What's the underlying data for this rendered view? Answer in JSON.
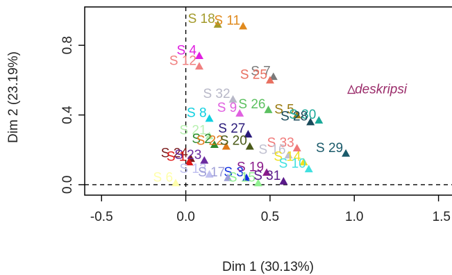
{
  "chart_data": {
    "type": "scatter",
    "title": "",
    "xlabel": "Dim 1 (30.13%)",
    "ylabel": "Dim 2 (23.19%)",
    "xlim": [
      -0.6,
      1.58
    ],
    "ylim": [
      -0.06,
      1.02
    ],
    "x_ticks": [
      -0.5,
      0.0,
      0.5,
      1.0,
      1.5
    ],
    "x_tick_labels": [
      "-0.5",
      "0.0",
      "0.5",
      "1.0",
      "1.5"
    ],
    "y_ticks": [
      0.0,
      0.4,
      0.8
    ],
    "y_tick_labels": [
      "0.0",
      "0.4",
      "0.8"
    ],
    "reference_lines": {
      "x": 0,
      "y": 0,
      "style": "dashed"
    },
    "grid": false,
    "supplementary_label": {
      "text": "deskripsi",
      "x": 1.02,
      "y": 0.54,
      "color": "#9b2d6b"
    },
    "points": [
      {
        "label": "S 18",
        "x": 0.19,
        "y": 0.92,
        "color": "#a39a2a"
      },
      {
        "label": "S 11",
        "x": 0.34,
        "y": 0.91,
        "color": "#e08a1e"
      },
      {
        "label": "S 4",
        "x": 0.08,
        "y": 0.74,
        "color": "#e020e0"
      },
      {
        "label": "S 12",
        "x": 0.08,
        "y": 0.68,
        "color": "#f08080"
      },
      {
        "label": "S 7",
        "x": 0.52,
        "y": 0.62,
        "color": "#7a7a7a"
      },
      {
        "label": "S 25",
        "x": 0.5,
        "y": 0.6,
        "color": "#e87060"
      },
      {
        "label": "S 32",
        "x": 0.28,
        "y": 0.49,
        "color": "#b8b8c8"
      },
      {
        "label": "S 26",
        "x": 0.49,
        "y": 0.43,
        "color": "#5cc060"
      },
      {
        "label": "S 5",
        "x": 0.66,
        "y": 0.4,
        "color": "#9a7a10"
      },
      {
        "label": "S 30",
        "x": 0.79,
        "y": 0.37,
        "color": "#18a898"
      },
      {
        "label": "S 28",
        "x": 0.74,
        "y": 0.36,
        "color": "#1a4a5a"
      },
      {
        "label": "S 8",
        "x": 0.14,
        "y": 0.38,
        "color": "#10d0e0"
      },
      {
        "label": "S 9",
        "x": 0.32,
        "y": 0.41,
        "color": "#e060e0"
      },
      {
        "label": "S 21",
        "x": 0.14,
        "y": 0.28,
        "color": "#b8f0b0"
      },
      {
        "label": "S 27",
        "x": 0.37,
        "y": 0.29,
        "color": "#2a1a7a"
      },
      {
        "label": "S 2",
        "x": 0.17,
        "y": 0.23,
        "color": "#2e8a2e"
      },
      {
        "label": "S 22",
        "x": 0.24,
        "y": 0.22,
        "color": "#e07818"
      },
      {
        "label": "S 20",
        "x": 0.38,
        "y": 0.22,
        "color": "#4a5a18"
      },
      {
        "label": "S 33",
        "x": 0.66,
        "y": 0.21,
        "color": "#f07878"
      },
      {
        "label": "S 16",
        "x": 0.61,
        "y": 0.17,
        "color": "#c0c0d0"
      },
      {
        "label": "S 29",
        "x": 0.95,
        "y": 0.18,
        "color": "#1a5a6a"
      },
      {
        "label": "S 24",
        "x": 0.03,
        "y": 0.15,
        "color": "#7a1a1a"
      },
      {
        "label": "S 23",
        "x": 0.11,
        "y": 0.14,
        "color": "#6a2aa0"
      },
      {
        "label": "S 1",
        "x": 0.02,
        "y": 0.13,
        "color": "#e01818"
      },
      {
        "label": "S 14",
        "x": 0.7,
        "y": 0.13,
        "color": "#f0e020"
      },
      {
        "label": "S 19",
        "x": 0.48,
        "y": 0.07,
        "color": "#8a1a8a"
      },
      {
        "label": "S 10",
        "x": 0.73,
        "y": 0.09,
        "color": "#40e0e0"
      },
      {
        "label": "S 13",
        "x": 0.14,
        "y": 0.06,
        "color": "#c0c0f0"
      },
      {
        "label": "S 3",
        "x": 0.36,
        "y": 0.04,
        "color": "#1030e0"
      },
      {
        "label": "S 17",
        "x": 0.25,
        "y": 0.04,
        "color": "#a0a0d8"
      },
      {
        "label": "S 15",
        "x": 0.43,
        "y": 0.01,
        "color": "#90f090"
      },
      {
        "label": "S 31",
        "x": 0.58,
        "y": 0.02,
        "color": "#5a1a8a"
      },
      {
        "label": "S 6",
        "x": -0.06,
        "y": 0.01,
        "color": "#ffffaa"
      }
    ]
  }
}
